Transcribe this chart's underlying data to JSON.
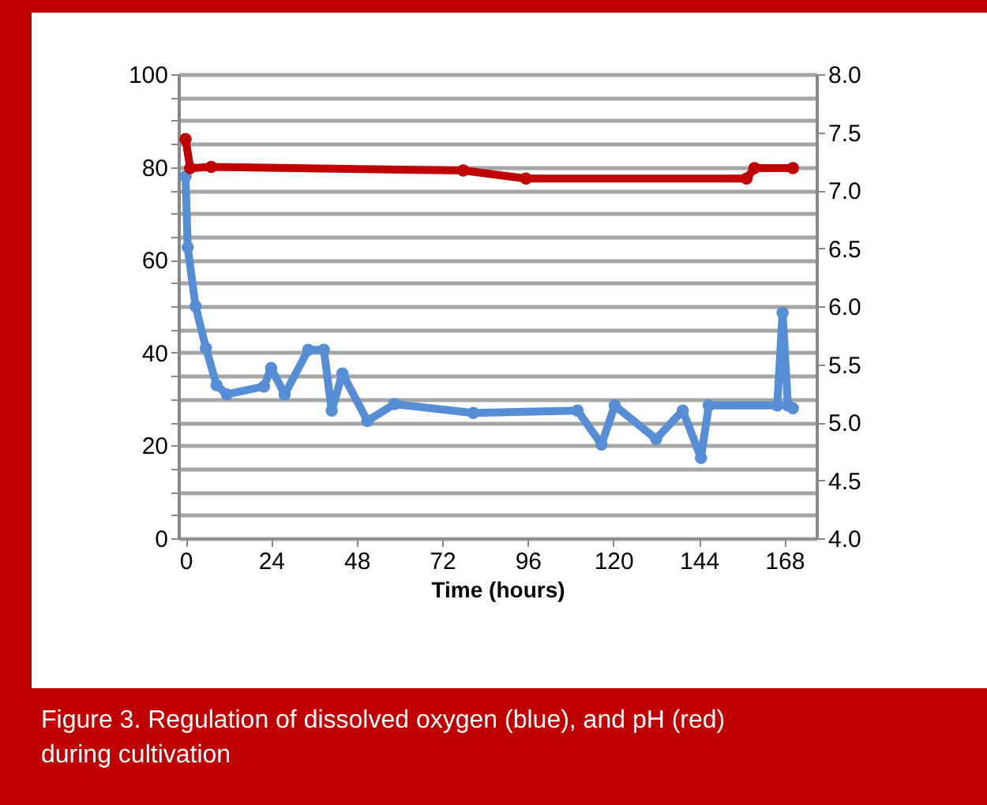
{
  "chart_data": {
    "type": "line",
    "xlabel": "Time (hours)",
    "annotations": [
      "Figure 3.  Regulation of  dissolved oxygen (blue), and pH (red) during cultivation"
    ],
    "xlim": [
      -2,
      177
    ],
    "xticks": [
      0,
      24,
      48,
      72,
      96,
      120,
      144,
      168
    ],
    "ylim": [
      0,
      100
    ],
    "yticks": [
      0,
      {
        "value": 5,
        "label": null
      },
      {
        "value": 10,
        "label": null
      },
      {
        "value": 15,
        "label": null
      },
      20,
      {
        "value": 25,
        "label": null
      },
      {
        "value": 30,
        "label": null
      },
      {
        "value": 35,
        "label": null
      },
      40,
      {
        "value": 45,
        "label": null
      },
      {
        "value": 50,
        "label": null
      },
      {
        "value": 55,
        "label": null
      },
      60,
      {
        "value": 65,
        "label": null
      },
      {
        "value": 70,
        "label": null
      },
      {
        "value": 75,
        "label": null
      },
      80,
      {
        "value": 85,
        "label": null
      },
      {
        "value": 90,
        "label": null
      },
      {
        "value": 95,
        "label": null
      },
      100
    ],
    "y2lim": [
      4,
      8
    ],
    "y2ticks": [
      {
        "value": 4,
        "label": "4.0"
      },
      4.5,
      {
        "value": 5,
        "label": "5.0"
      },
      5.5,
      {
        "value": 6,
        "label": "6.0"
      },
      6.5,
      {
        "value": 7,
        "label": "7.0"
      },
      7.5,
      {
        "value": 8,
        "label": "8.0"
      }
    ],
    "grid": "y",
    "marker": "circle",
    "line_style": "solid",
    "series": [
      {
        "color": "#558ed5",
        "x": [
          0,
          0.6,
          2.8,
          5.7,
          8.7,
          11.6,
          22,
          24,
          27.8,
          34.4,
          38.8,
          41,
          44,
          51,
          58.6,
          80.7,
          110,
          116.7,
          120.4,
          132,
          139.5,
          144.6,
          146.8,
          166,
          167.5,
          169,
          170.4
        ],
        "values": [
          78,
          62.7,
          50,
          41,
          33,
          31,
          32.7,
          36.7,
          31,
          40.6,
          40.6,
          27.5,
          35.5,
          25.3,
          28.9,
          27,
          27.5,
          20.2,
          28.6,
          21.4,
          27.5,
          17.3,
          28.6,
          28.6,
          48.6,
          28.6,
          28
        ]
      },
      {
        "color": "#c00000",
        "axis": "y2",
        "x": [
          0,
          1.3,
          7.2,
          77.9,
          95.5,
          157.4,
          159.6,
          170.4
        ],
        "values": [
          7.44,
          7.19,
          7.2,
          7.17,
          7.1,
          7.1,
          7.19,
          7.19
        ]
      }
    ]
  }
}
